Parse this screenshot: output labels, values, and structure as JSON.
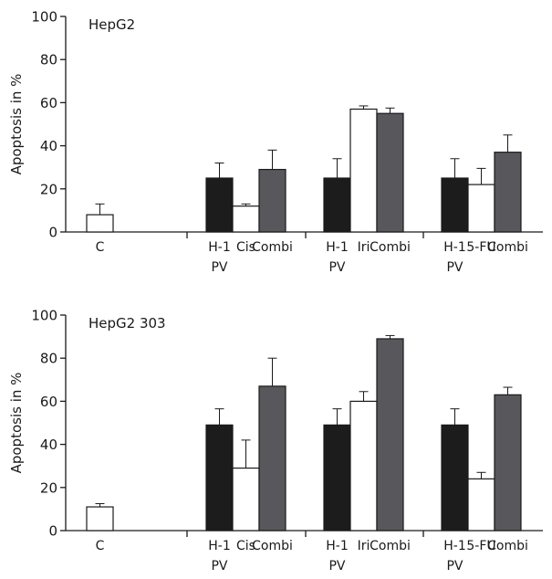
{
  "chart_data": [
    {
      "type": "bar",
      "panel_label": "HepG2",
      "ylabel": "Apoptosis in %",
      "xlabel": "",
      "ylim": [
        0,
        100
      ],
      "yticks": [
        0,
        20,
        40,
        60,
        80,
        100
      ],
      "groups": [
        {
          "bars": [
            {
              "label": "C",
              "sublabel": "",
              "value": 8,
              "error": 5,
              "kind": "control"
            }
          ]
        },
        {
          "bars": [
            {
              "label": "H-1",
              "sublabel": "PV",
              "value": 25,
              "error": 7,
              "kind": "virus"
            },
            {
              "label": "Cis",
              "sublabel": "",
              "value": 12,
              "error": 1,
              "kind": "drug"
            },
            {
              "label": "Combi",
              "sublabel": "",
              "value": 29,
              "error": 9,
              "kind": "combi"
            }
          ]
        },
        {
          "bars": [
            {
              "label": "H-1",
              "sublabel": "PV",
              "value": 25,
              "error": 9,
              "kind": "virus"
            },
            {
              "label": "Iri",
              "sublabel": "",
              "value": 57,
              "error": 1.5,
              "kind": "drug"
            },
            {
              "label": "Combi",
              "sublabel": "",
              "value": 55,
              "error": 2.5,
              "kind": "combi"
            }
          ]
        },
        {
          "bars": [
            {
              "label": "H-1",
              "sublabel": "PV",
              "value": 25,
              "error": 9,
              "kind": "virus"
            },
            {
              "label": "5-FU",
              "sublabel": "",
              "value": 22,
              "error": 7.5,
              "kind": "drug"
            },
            {
              "label": "Combi",
              "sublabel": "",
              "value": 37,
              "error": 8,
              "kind": "combi"
            }
          ]
        }
      ]
    },
    {
      "type": "bar",
      "panel_label": "HepG2 303",
      "ylabel": "Apoptosis in %",
      "xlabel": "",
      "ylim": [
        0,
        100
      ],
      "yticks": [
        0,
        20,
        40,
        60,
        80,
        100
      ],
      "groups": [
        {
          "bars": [
            {
              "label": "C",
              "sublabel": "",
              "value": 11,
              "error": 1.5,
              "kind": "control"
            }
          ]
        },
        {
          "bars": [
            {
              "label": "H-1",
              "sublabel": "PV",
              "value": 49,
              "error": 7.5,
              "kind": "virus"
            },
            {
              "label": "Cis",
              "sublabel": "",
              "value": 29,
              "error": 13,
              "kind": "drug"
            },
            {
              "label": "Combi",
              "sublabel": "",
              "value": 67,
              "error": 13,
              "kind": "combi"
            }
          ]
        },
        {
          "bars": [
            {
              "label": "H-1",
              "sublabel": "PV",
              "value": 49,
              "error": 7.5,
              "kind": "virus"
            },
            {
              "label": "Iri",
              "sublabel": "",
              "value": 60,
              "error": 4.5,
              "kind": "drug"
            },
            {
              "label": "Combi",
              "sublabel": "",
              "value": 89,
              "error": 1.5,
              "kind": "combi"
            }
          ]
        },
        {
          "bars": [
            {
              "label": "H-1",
              "sublabel": "PV",
              "value": 49,
              "error": 7.5,
              "kind": "virus"
            },
            {
              "label": "5-FU",
              "sublabel": "",
              "value": 24,
              "error": 3,
              "kind": "drug"
            },
            {
              "label": "Combi",
              "sublabel": "",
              "value": 63,
              "error": 3.5,
              "kind": "combi"
            }
          ]
        }
      ]
    }
  ],
  "colors": {
    "control": "#ffffff",
    "virus": "#1c1c1c",
    "drug": "#ffffff",
    "combi": "#58585c",
    "axis": "#1a1a1a"
  }
}
